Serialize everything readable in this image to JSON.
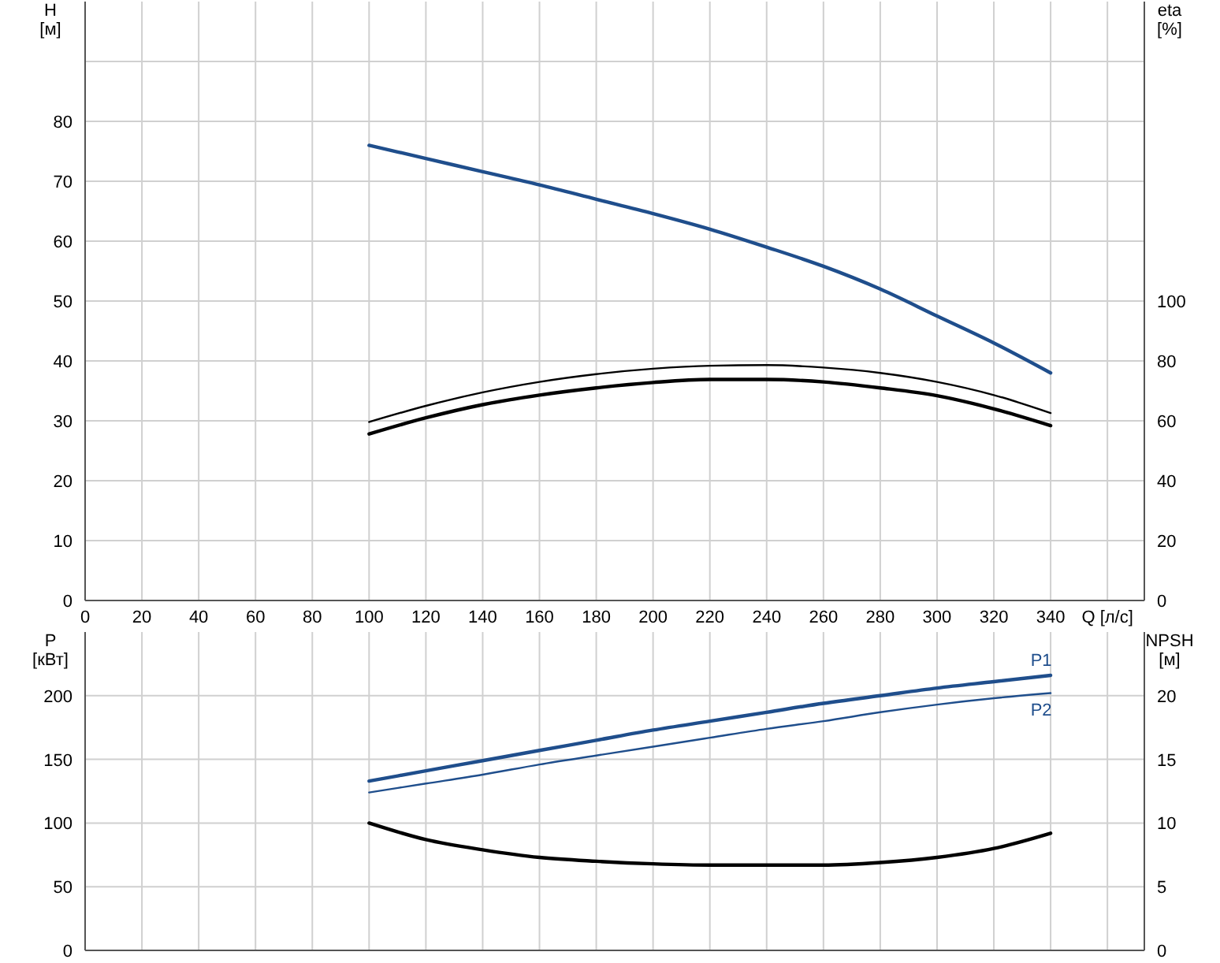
{
  "chart_data": [
    {
      "type": "line",
      "xlabel": "Q [л/с]",
      "ylabel": "H [м]",
      "y2label": "eta [%]",
      "x": [
        100,
        120,
        140,
        160,
        180,
        200,
        220,
        240,
        260,
        280,
        300,
        320,
        340
      ],
      "xlim": [
        0,
        373
      ],
      "xticks": [
        0,
        20,
        40,
        60,
        80,
        100,
        120,
        140,
        160,
        180,
        200,
        220,
        240,
        260,
        280,
        300,
        320,
        340,
        {
          "value": 360,
          "label": null
        }
      ],
      "ylim": [
        0,
        100
      ],
      "yticks": [
        0,
        10,
        20,
        30,
        40,
        50,
        60,
        70,
        80,
        {
          "value": 90,
          "label": null
        }
      ],
      "y2lim": [
        0,
        200
      ],
      "y2ticks": [
        0,
        20,
        40,
        60,
        80,
        100
      ],
      "grid": true,
      "series": [
        {
          "color": "#1f4e8c",
          "values": [
            76,
            73.8,
            71.6,
            69.4,
            67,
            64.6,
            62,
            59,
            55.8,
            52,
            47.5,
            43,
            38
          ]
        },
        {
          "color": "#000000",
          "axis": "y2",
          "values": [
            59.6,
            65,
            69.5,
            73,
            75.6,
            77.4,
            78.4,
            78.6,
            77.8,
            76,
            73,
            68.6,
            62.6
          ]
        },
        {
          "color": "#000000",
          "axis": "y2",
          "values": [
            55.6,
            61,
            65.4,
            68.6,
            71,
            72.8,
            73.8,
            73.8,
            73,
            71,
            68.4,
            64,
            58.4
          ]
        }
      ]
    },
    {
      "type": "line",
      "ylabel": "P [кВт]",
      "y2label": "NPSH [м]",
      "x": [
        100,
        120,
        140,
        160,
        180,
        200,
        220,
        240,
        260,
        280,
        300,
        320,
        340
      ],
      "xlim": [
        0,
        373
      ],
      "xticks": [
        0,
        20,
        40,
        60,
        80,
        100,
        120,
        140,
        160,
        180,
        200,
        220,
        240,
        260,
        280,
        300,
        320,
        340,
        {
          "value": 360,
          "label": null
        }
      ],
      "ylim": [
        0,
        250
      ],
      "yticks": [
        0,
        50,
        100,
        150,
        200
      ],
      "y2lim": [
        0,
        25
      ],
      "y2ticks": [
        0,
        5,
        10,
        15,
        20
      ],
      "tick_labels": "y",
      "grid": true,
      "series": [
        {
          "name": "P1",
          "color": "#1f4e8c",
          "values": [
            133,
            141,
            149,
            157,
            165,
            173,
            180,
            187,
            194,
            200,
            206,
            211,
            216
          ]
        },
        {
          "name": "P2",
          "color": "#1f4e8c",
          "values": [
            124,
            131,
            138,
            146,
            153,
            160,
            167,
            174,
            180,
            187,
            193,
            198,
            202
          ]
        },
        {
          "color": "#000000",
          "axis": "y2",
          "values": [
            10,
            8.7,
            7.9,
            7.3,
            7,
            6.8,
            6.7,
            6.7,
            6.7,
            6.9,
            7.3,
            8,
            9.2
          ]
        }
      ]
    }
  ]
}
